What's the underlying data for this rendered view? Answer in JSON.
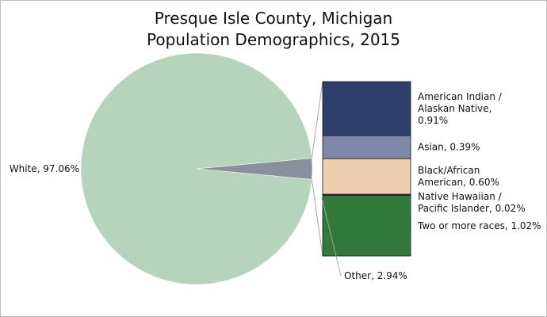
{
  "chart_data": {
    "type": "pie",
    "title_line1": "Presque Isle County, Michigan",
    "title_line2": "Population Demographics, 2015",
    "pie": {
      "slices": [
        {
          "name": "White",
          "value": 97.06,
          "label": "White, 97.06%",
          "color": "#b6d4bc"
        },
        {
          "name": "Other",
          "value": 2.94,
          "label": "Other, 2.94%",
          "color": "#8a8f9b"
        }
      ]
    },
    "breakdown": {
      "of": "Other",
      "segments": [
        {
          "name": "American Indian / Alaskan Native",
          "value": 0.91,
          "label_lines": [
            "American Indian /",
            "Alaskan Native,",
            "0.91%"
          ],
          "color": "#2e3f6b"
        },
        {
          "name": "Asian",
          "value": 0.39,
          "label_lines": [
            "Asian, 0.39%"
          ],
          "color": "#7d87a8"
        },
        {
          "name": "Black/African American",
          "value": 0.6,
          "label_lines": [
            "Black/African",
            "American, 0.60%"
          ],
          "color": "#efcfb1"
        },
        {
          "name": "Native Hawaiian / Pacific Islander",
          "value": 0.02,
          "label_lines": [
            "Native Hawaiian /",
            "Pacific Islander, 0.02%"
          ],
          "color": "#2e3f6b"
        },
        {
          "name": "Two or more races",
          "value": 1.02,
          "label_lines": [
            "Two or more races, 1.02%"
          ],
          "color": "#327a3c"
        }
      ]
    }
  }
}
